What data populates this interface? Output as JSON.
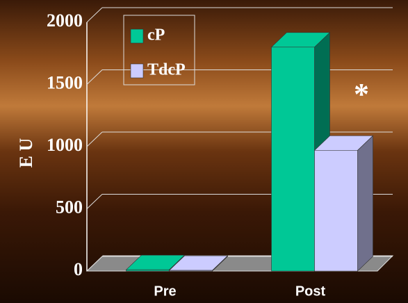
{
  "chart_data": {
    "type": "bar3d",
    "ylabel": "E U",
    "categories": [
      "Pre",
      "Post"
    ],
    "series": [
      {
        "name": "cP",
        "color": "#00c896",
        "values": [
          10,
          1800
        ]
      },
      {
        "name": "TdcP",
        "color": "#ccccff",
        "values": [
          5,
          970
        ]
      }
    ],
    "ylim": [
      0,
      2000
    ],
    "yticks": [
      0,
      500,
      1000,
      1500,
      2000
    ],
    "grid": true,
    "annotation": "*"
  }
}
